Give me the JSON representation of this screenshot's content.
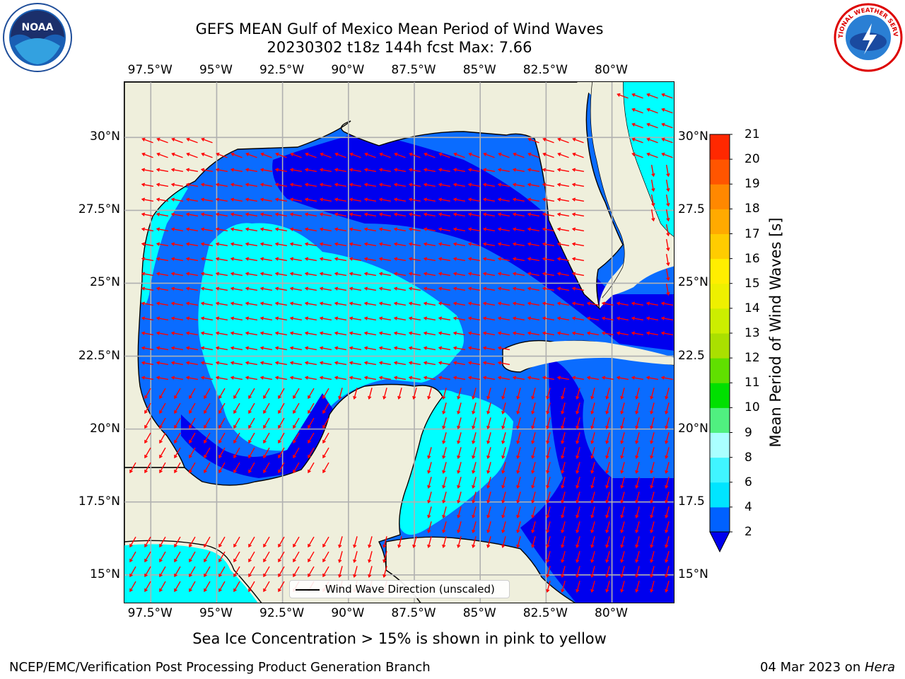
{
  "title": {
    "line1": "GEFS MEAN Gulf of Mexico Mean Period of Wind Waves",
    "line2": "20230302 t18z 144h fcst   Max: 7.66"
  },
  "axes": {
    "lon_labels": [
      "97.5°W",
      "95°W",
      "92.5°W",
      "90°W",
      "87.5°W",
      "85°W",
      "82.5°W",
      "80°W"
    ],
    "lat_labels_left": [
      "30°N",
      "27.5°N",
      "25°N",
      "22.5°N",
      "20°N",
      "17.5°N",
      "15°N"
    ],
    "lat_labels_right": [
      "30°N",
      "27.5",
      "25°N",
      "22.5",
      "20°N",
      "17.5",
      "15°N"
    ]
  },
  "legend": {
    "label": "Wind Wave Direction (unscaled)"
  },
  "colorbar": {
    "label": "Mean Period of Wind Waves [s]",
    "ticks": [
      "2",
      "4",
      "6",
      "8",
      "9",
      "10",
      "11",
      "12",
      "13",
      "14",
      "15",
      "16",
      "17",
      "18",
      "19",
      "20",
      "21"
    ],
    "colors": [
      "#0061ff",
      "#00e5ff",
      "#40f5ff",
      "#aaffff",
      "#50f080",
      "#00e000",
      "#60e000",
      "#aae000",
      "#ccee00",
      "#eef000",
      "#ffee00",
      "#ffcc00",
      "#ffaa00",
      "#ff8800",
      "#ff5500",
      "#ff2800",
      "#ff0000"
    ],
    "extend_color": "#0000ee"
  },
  "colors": {
    "land": "#efefdc",
    "deep_blue": "#0000ee",
    "mid_blue": "#0a6cff",
    "cyan": "#00ffff",
    "light_cyan": "#99fff5",
    "arrow": "#ff0000",
    "grid": "#b0b0b0"
  },
  "footer": {
    "note": "Sea Ice Concentration > 15% is shown in pink to yellow",
    "left": "NCEP/EMC/Verification Post Processing Product Generation Branch",
    "date": "04 Mar 2023 on ",
    "host": "Hera"
  },
  "logos": {
    "noaa": {
      "text": "NOAA",
      "icon": "noaa-logo"
    },
    "nws": {
      "text": "NATIONAL WEATHER SERVICE",
      "icon": "nws-logo"
    }
  }
}
